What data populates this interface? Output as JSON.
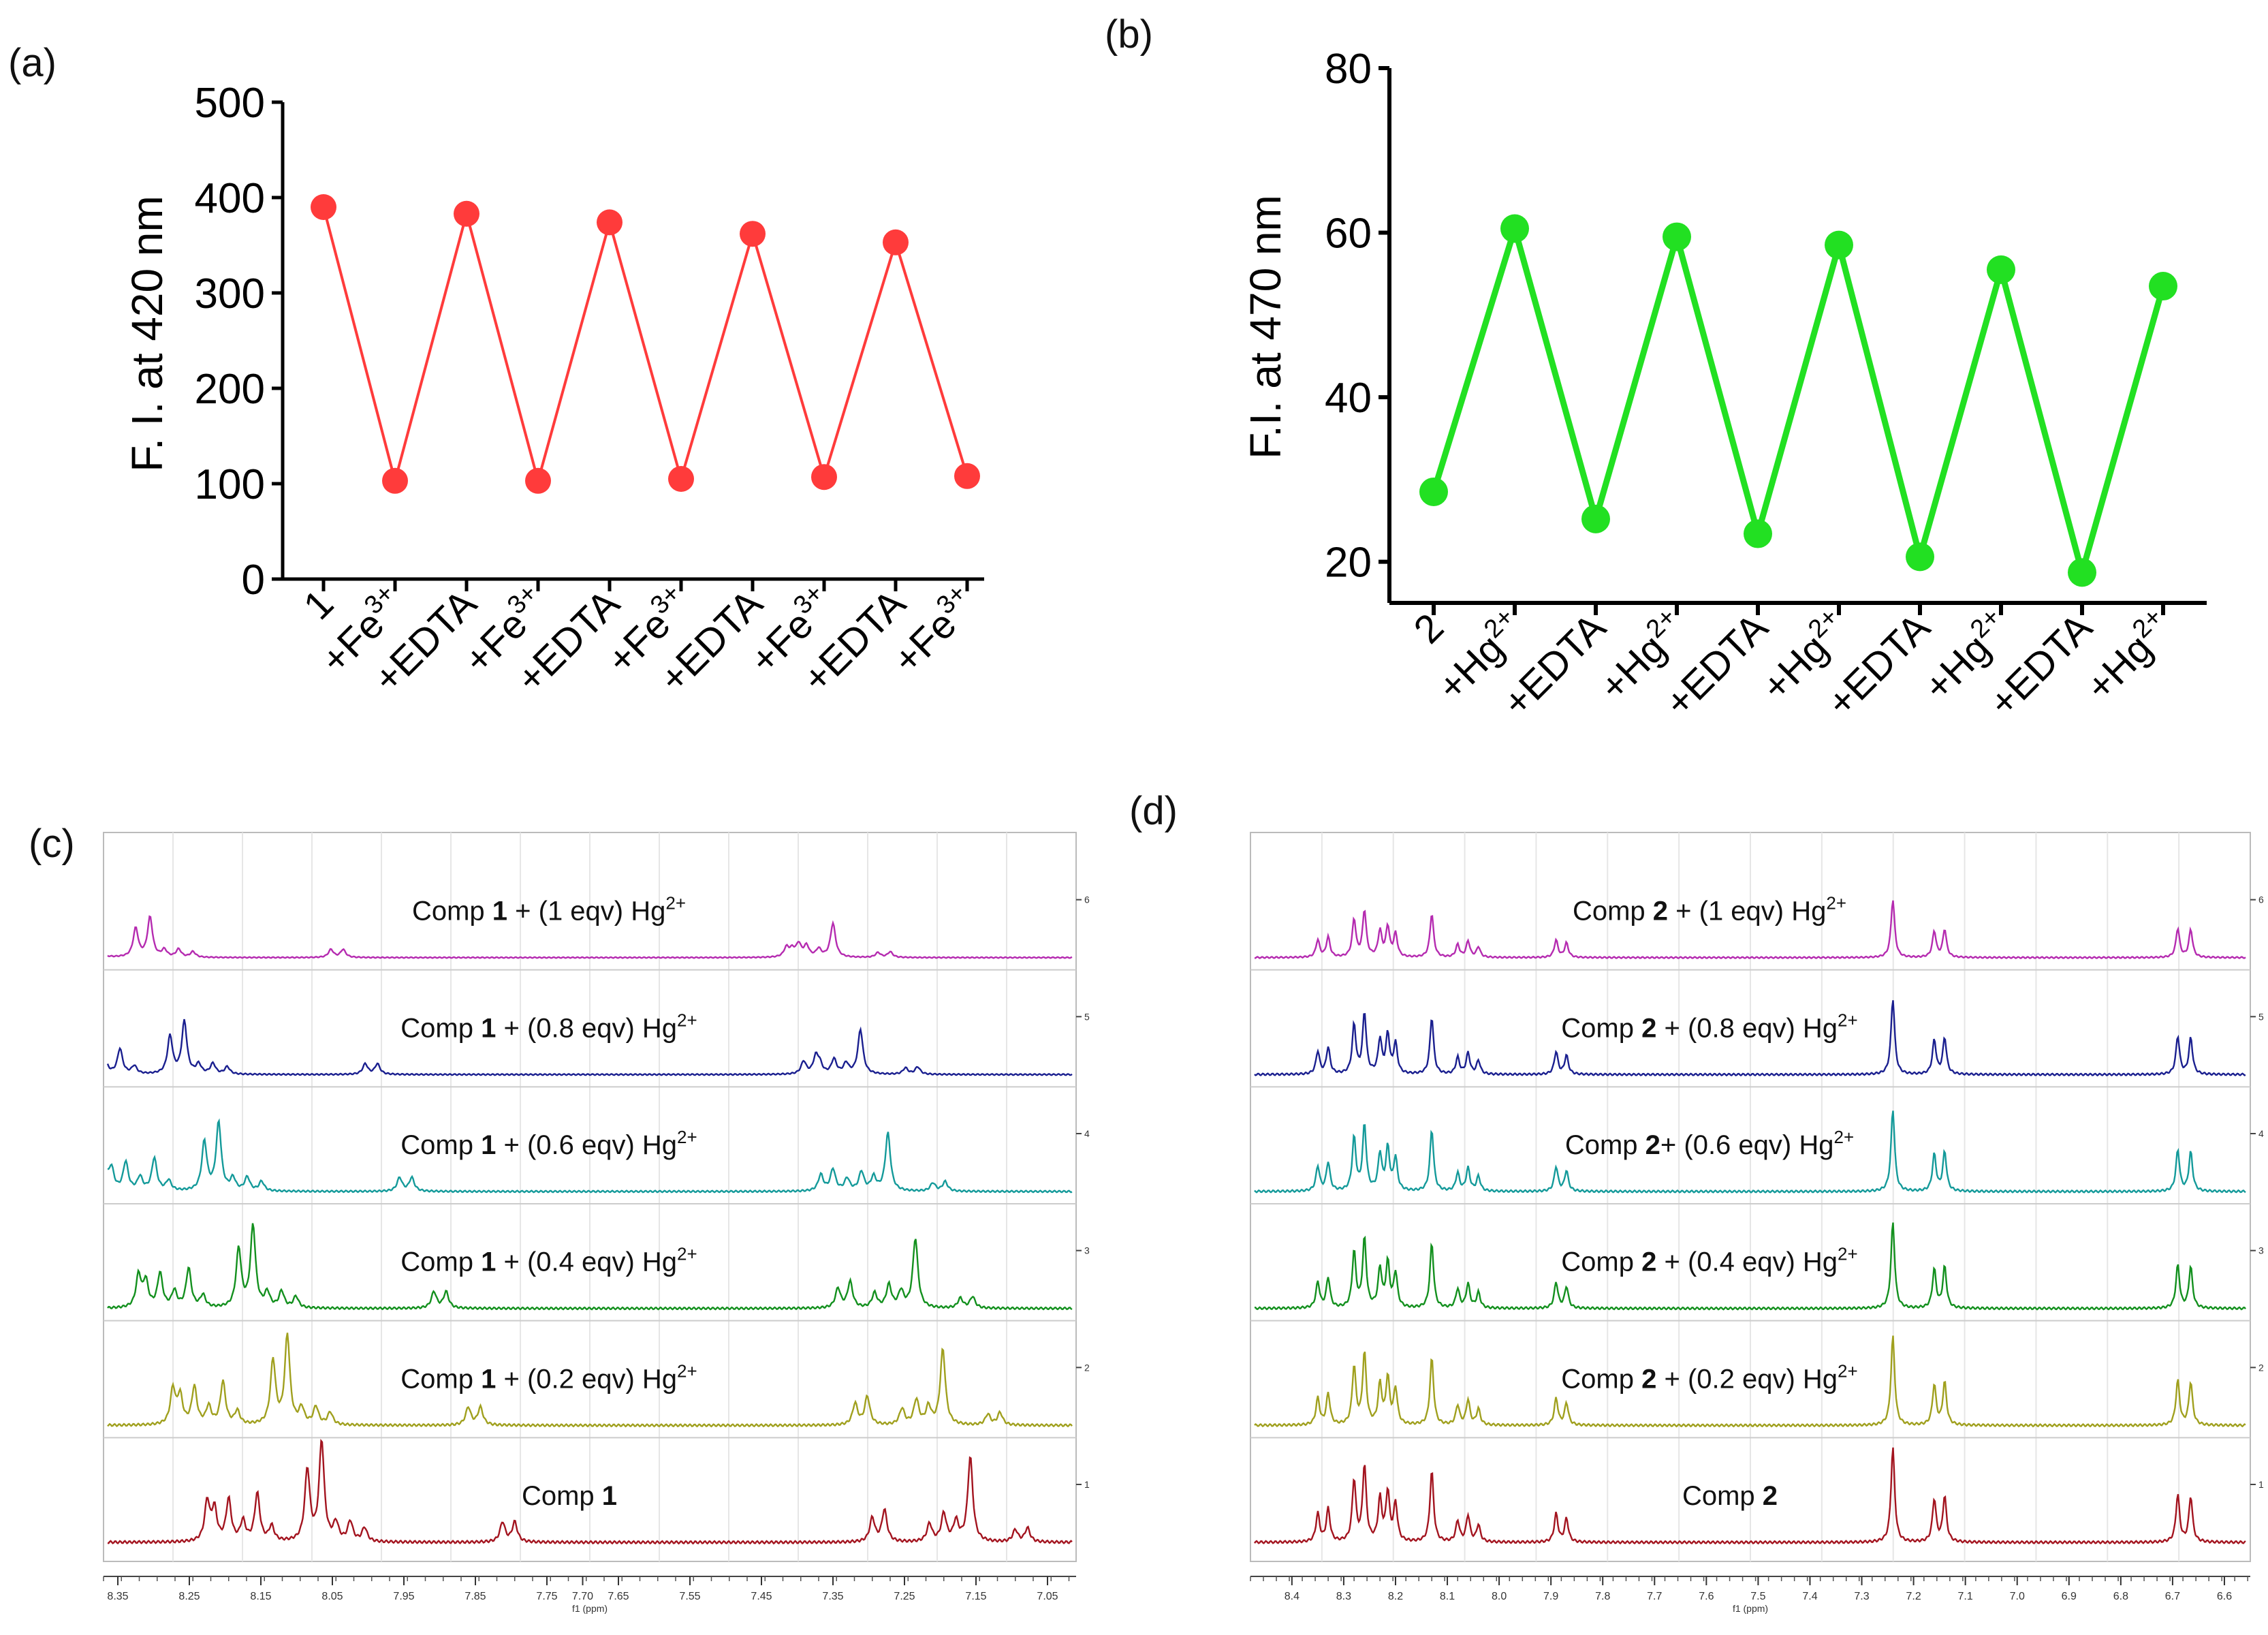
{
  "panel_labels": {
    "a": "(a)",
    "b": "(b)",
    "c": "(c)",
    "d": "(d)"
  },
  "colors": {
    "panel_a": "#ff3b3b",
    "panel_b": "#22e022"
  },
  "chart_data": [
    {
      "type": "line",
      "panel": "(a)",
      "ylabel": "F. I. at 420 nm",
      "ylim": [
        0,
        500
      ],
      "yticks": [
        "0",
        "100",
        "200",
        "300",
        "400",
        "500"
      ],
      "categories": [
        {
          "base": "1",
          "sup": ""
        },
        {
          "base": "+Fe",
          "sup": "3+"
        },
        {
          "base": "+EDTA",
          "sup": ""
        },
        {
          "base": "+Fe",
          "sup": "3+"
        },
        {
          "base": "+EDTA",
          "sup": ""
        },
        {
          "base": "+Fe",
          "sup": "3+"
        },
        {
          "base": "+EDTA",
          "sup": ""
        },
        {
          "base": "+Fe",
          "sup": "3+"
        },
        {
          "base": "+EDTA",
          "sup": ""
        },
        {
          "base": "+Fe",
          "sup": "3+"
        }
      ],
      "values": [
        390,
        103,
        383,
        103,
        374,
        105,
        362,
        107,
        353,
        108
      ]
    },
    {
      "type": "line",
      "panel": "(b)",
      "ylabel": "F.I. at 470 nm",
      "ylim": [
        15,
        80
      ],
      "yticks": [
        "20",
        "40",
        "60",
        "80"
      ],
      "categories": [
        {
          "base": "2",
          "sup": ""
        },
        {
          "base": "+Hg",
          "sup": "2+"
        },
        {
          "base": "+EDTA",
          "sup": ""
        },
        {
          "base": "+Hg",
          "sup": "2+"
        },
        {
          "base": "+EDTA",
          "sup": ""
        },
        {
          "base": "+Hg",
          "sup": "2+"
        },
        {
          "base": "+EDTA",
          "sup": ""
        },
        {
          "base": "+Hg",
          "sup": "2+"
        },
        {
          "base": "+EDTA",
          "sup": ""
        },
        {
          "base": "+Hg",
          "sup": "2+"
        }
      ],
      "values": [
        28.5,
        60.5,
        25.2,
        59.5,
        23.4,
        58.5,
        20.6,
        55.5,
        18.7,
        53.5
      ]
    }
  ],
  "nmr_c": {
    "panel": "(c)",
    "axis_title": "f1 (ppm)",
    "ppm_range": [
      8.37,
      7.01
    ],
    "ticks": [
      "8.35",
      "8.25",
      "8.15",
      "8.05",
      "7.95",
      "7.85",
      "7.75",
      "7.70",
      "7.65",
      "7.55",
      "7.45",
      "7.35",
      "7.25",
      "7.15",
      "7.05"
    ],
    "right_ticks": [
      "1",
      "2",
      "3",
      "4",
      "5",
      "6"
    ],
    "traces": [
      {
        "label": {
          "pre": "Comp ",
          "bold": "1",
          "post": "",
          "sup": ""
        },
        "color": "#a3141f"
      },
      {
        "label": {
          "pre": "Comp ",
          "bold": "1",
          "post": " + (0.2 eqv) Hg",
          "sup": "2+"
        },
        "color": "#a0a01e"
      },
      {
        "label": {
          "pre": "Comp ",
          "bold": "1",
          "post": " + (0.4 eqv) Hg",
          "sup": "2+"
        },
        "color": "#13901e"
      },
      {
        "label": {
          "pre": "Comp ",
          "bold": "1",
          "post": " + (0.6 eqv) Hg",
          "sup": "2+"
        },
        "color": "#149a9a"
      },
      {
        "label": {
          "pre": "Comp ",
          "bold": "1",
          "post": " + (0.8 eqv) Hg",
          "sup": "2+"
        },
        "color": "#1a1f8f"
      },
      {
        "label": {
          "pre": "Comp ",
          "bold": "1",
          "post": " + (1 eqv) Hg",
          "sup": "2+"
        },
        "color": "#b52bb0"
      }
    ]
  },
  "nmr_d": {
    "panel": "(d)",
    "axis_title": "f1 (ppm)",
    "ppm_range": [
      8.48,
      6.55
    ],
    "ticks": [
      "8.4",
      "8.3",
      "8.2",
      "8.1",
      "8.0",
      "7.9",
      "7.8",
      "7.7",
      "7.6",
      "7.5",
      "7.4",
      "7.3",
      "7.2",
      "7.1",
      "7.0",
      "6.9",
      "6.8",
      "6.7",
      "6.6"
    ],
    "right_ticks": [
      "1",
      "2",
      "3",
      "4",
      "5",
      "6"
    ],
    "traces": [
      {
        "label": {
          "pre": "Comp ",
          "bold": "2",
          "post": "",
          "sup": ""
        },
        "color": "#a3141f"
      },
      {
        "label": {
          "pre": "Comp ",
          "bold": "2",
          "post": " + (0.2 eqv) Hg",
          "sup": "2+"
        },
        "color": "#a0a01e"
      },
      {
        "label": {
          "pre": "Comp ",
          "bold": "2",
          "post": " + (0.4 eqv) Hg",
          "sup": "2+"
        },
        "color": "#13901e"
      },
      {
        "label": {
          "pre": "Comp ",
          "bold": "2",
          "post": "+ (0.6 eqv) Hg",
          "sup": "2+"
        },
        "color": "#149a9a"
      },
      {
        "label": {
          "pre": "Comp ",
          "bold": "2",
          "post": " + (0.8 eqv) Hg",
          "sup": "2+"
        },
        "color": "#1a1f8f"
      },
      {
        "label": {
          "pre": "Comp ",
          "bold": "2",
          "post": " + (1 eqv) Hg",
          "sup": "2+"
        },
        "color": "#b52bb0"
      }
    ]
  }
}
